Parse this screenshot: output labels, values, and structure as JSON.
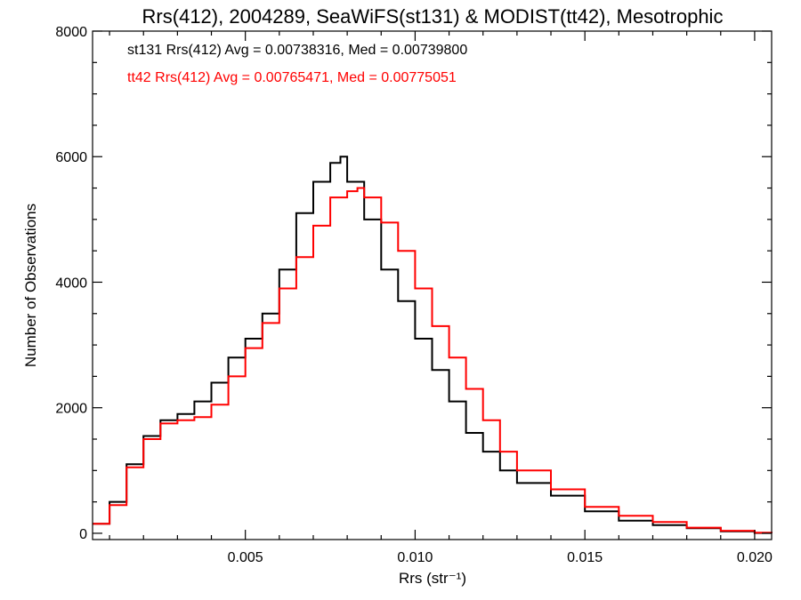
{
  "chart_data": {
    "type": "line",
    "title": "Rrs(412), 2004289, SeaWiFS(st131) & MODIST(tt42), Mesotrophic",
    "xlabel": "Rrs (str⁻¹)",
    "ylabel": "Number of Observations",
    "xlim": [
      0.0005,
      0.0205
    ],
    "ylim": [
      -100,
      8000
    ],
    "x_ticks": [
      0.005,
      0.01,
      0.015,
      0.02
    ],
    "x_tick_labels": [
      "0.005",
      "0.010",
      "0.015",
      "0.020"
    ],
    "y_ticks": [
      0,
      2000,
      4000,
      6000,
      8000
    ],
    "y_tick_labels": [
      "0",
      "2000",
      "4000",
      "6000",
      "8000"
    ],
    "grid": false,
    "step_histogram": true,
    "series": [
      {
        "color": "#000000",
        "x": [
          0.0005,
          0.001,
          0.0015,
          0.002,
          0.0025,
          0.003,
          0.0035,
          0.004,
          0.0045,
          0.005,
          0.0055,
          0.006,
          0.0065,
          0.007,
          0.0075,
          0.0078,
          0.008,
          0.0085,
          0.009,
          0.0095,
          0.01,
          0.0105,
          0.011,
          0.0115,
          0.012,
          0.0125,
          0.013,
          0.014,
          0.015,
          0.016,
          0.017,
          0.018,
          0.019,
          0.02,
          0.0205
        ],
        "values": [
          150,
          500,
          1100,
          1550,
          1800,
          1900,
          2100,
          2400,
          2800,
          3100,
          3500,
          4200,
          5100,
          5600,
          5900,
          6000,
          5600,
          5000,
          4200,
          3700,
          3100,
          2600,
          2100,
          1600,
          1300,
          1000,
          800,
          600,
          350,
          200,
          130,
          80,
          30,
          5,
          0
        ]
      },
      {
        "color": "#ff0000",
        "x": [
          0.0005,
          0.001,
          0.0015,
          0.002,
          0.0025,
          0.003,
          0.0035,
          0.004,
          0.0045,
          0.005,
          0.0055,
          0.006,
          0.0065,
          0.007,
          0.0075,
          0.008,
          0.0083,
          0.0085,
          0.009,
          0.0095,
          0.01,
          0.0105,
          0.011,
          0.0115,
          0.012,
          0.0125,
          0.013,
          0.014,
          0.015,
          0.016,
          0.017,
          0.018,
          0.019,
          0.02,
          0.0205
        ],
        "values": [
          150,
          450,
          1050,
          1500,
          1750,
          1800,
          1850,
          2050,
          2500,
          2950,
          3350,
          3900,
          4400,
          4900,
          5350,
          5450,
          5500,
          5350,
          4950,
          4500,
          3900,
          3300,
          2800,
          2300,
          1800,
          1300,
          1000,
          700,
          420,
          280,
          180,
          90,
          40,
          10,
          0
        ]
      }
    ],
    "annotations": [
      {
        "text": "st131 Rrs(412) Avg = 0.00738316, Med = 0.00739800",
        "color": "#000000"
      },
      {
        "text": "tt42 Rrs(412) Avg = 0.00765471, Med = 0.00775051",
        "color": "#ff0000"
      }
    ]
  }
}
